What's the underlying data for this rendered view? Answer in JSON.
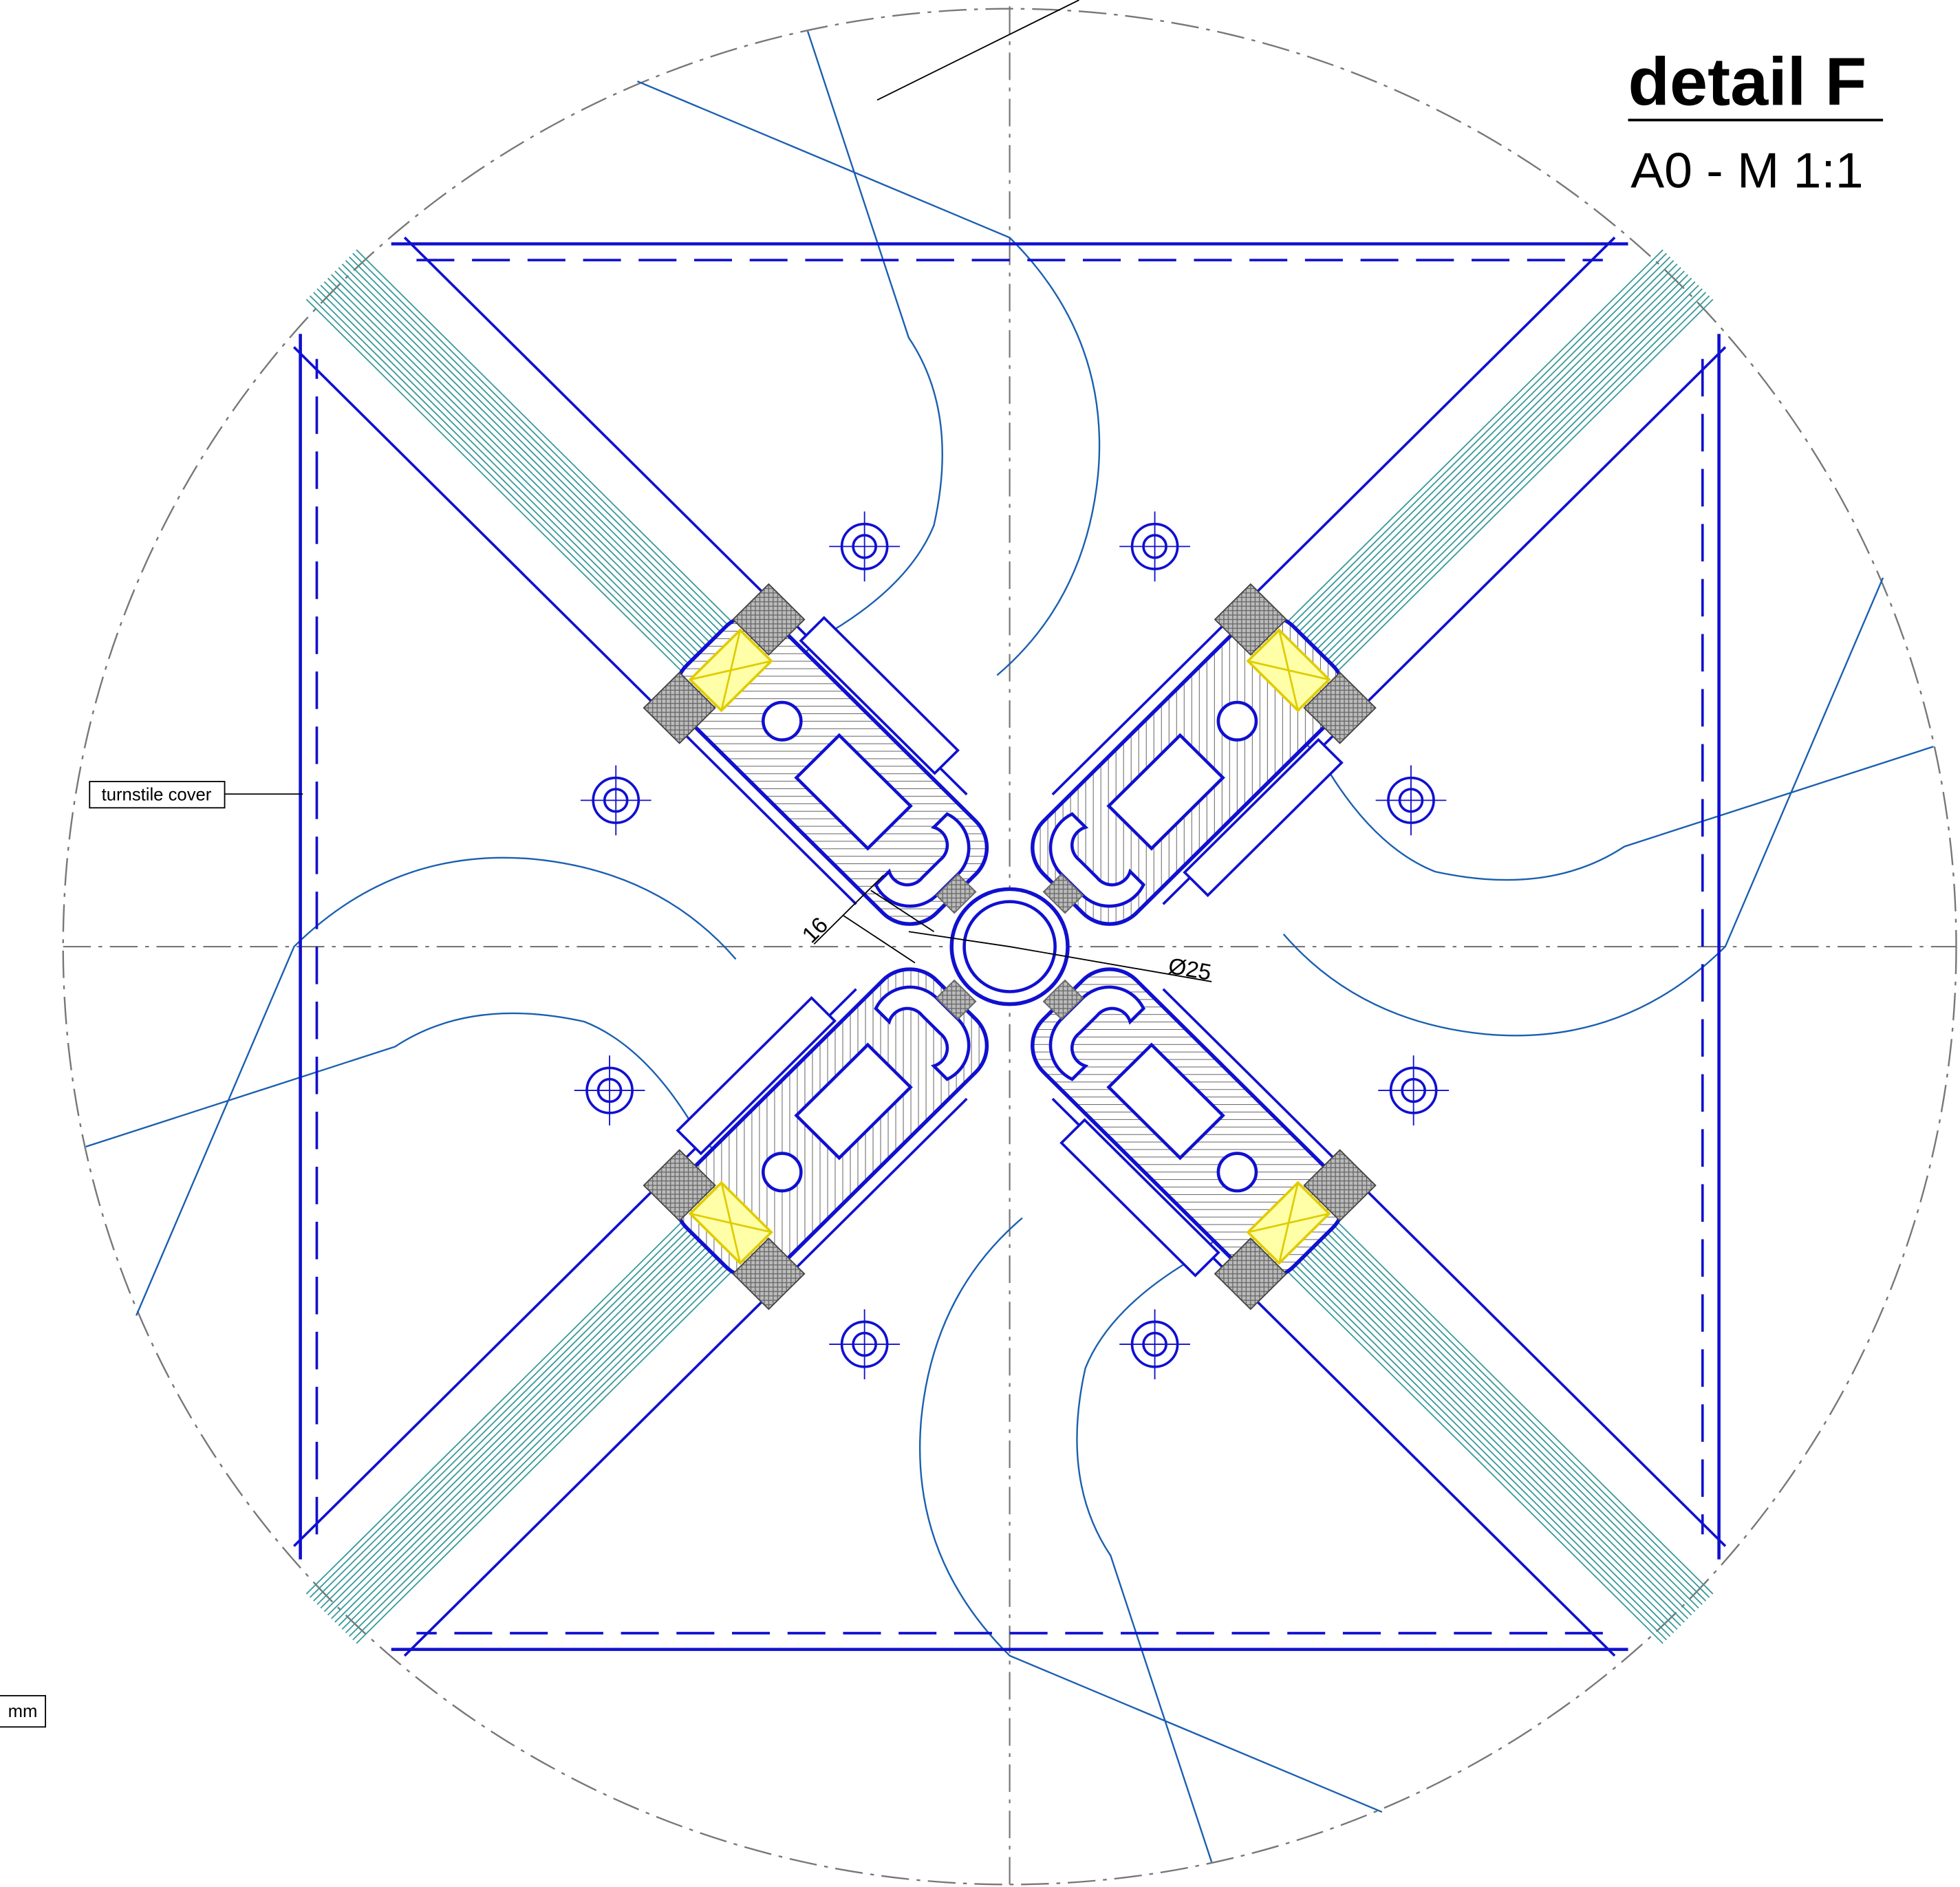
{
  "header": {
    "title": "detail F",
    "scale": "A0 - M 1:1"
  },
  "labels": {
    "cover": "turnstile cover",
    "unit": "mm"
  },
  "dimensions": {
    "gap": "16",
    "diameter": "Ø25"
  }
}
